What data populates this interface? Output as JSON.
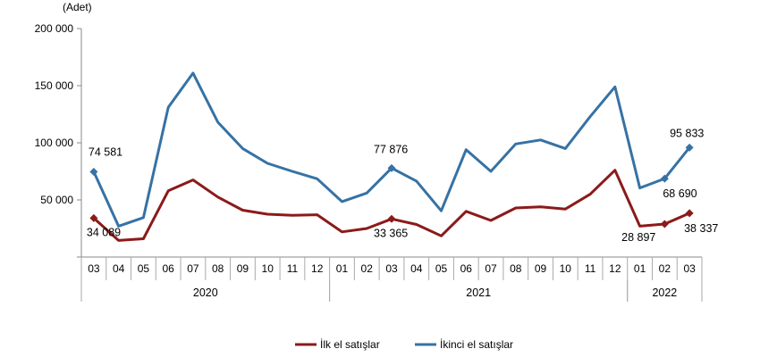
{
  "chart_data": {
    "type": "line",
    "unit_label": "(Adet)",
    "y_ticks": [
      "200 000",
      "150 000",
      "100 000",
      "50 000"
    ],
    "ylim": [
      0,
      200000
    ],
    "grid": false,
    "legend_position": "bottom-center",
    "categories": [
      "03",
      "04",
      "05",
      "06",
      "07",
      "08",
      "09",
      "10",
      "11",
      "12",
      "01",
      "02",
      "03",
      "04",
      "05",
      "06",
      "07",
      "08",
      "09",
      "10",
      "11",
      "12",
      "01",
      "02",
      "03"
    ],
    "year_groups": [
      {
        "label": "2020",
        "start": 0,
        "count": 10
      },
      {
        "label": "2021",
        "start": 10,
        "count": 12
      },
      {
        "label": "2022",
        "start": 22,
        "count": 3
      }
    ],
    "series": [
      {
        "name": "İkinci el satışlar",
        "color": "#3672a4",
        "values": [
          74581,
          27000,
          34500,
          131000,
          161000,
          118000,
          95000,
          82000,
          75000,
          68500,
          48500,
          56000,
          77876,
          66500,
          40500,
          94000,
          75000,
          99000,
          102500,
          95000,
          123000,
          149000,
          60500,
          68690,
          95833
        ],
        "data_labels": [
          {
            "index": 0,
            "text": "74 581"
          },
          {
            "index": 12,
            "text": "77 876"
          },
          {
            "index": 23,
            "text": "68 690"
          },
          {
            "index": 24,
            "text": "95 833"
          }
        ]
      },
      {
        "name": "İlk el satışlar",
        "color": "#8b1a1a",
        "values": [
          34089,
          14500,
          16000,
          58000,
          67500,
          52500,
          41000,
          37500,
          36500,
          37000,
          22000,
          25000,
          33365,
          28500,
          18500,
          40000,
          32000,
          43000,
          44000,
          42000,
          55000,
          76000,
          27000,
          28897,
          38337
        ],
        "data_labels": [
          {
            "index": 0,
            "text": "34 089"
          },
          {
            "index": 12,
            "text": "33 365"
          },
          {
            "index": 23,
            "text": "28 897"
          },
          {
            "index": 24,
            "text": "38 337"
          }
        ]
      }
    ]
  }
}
